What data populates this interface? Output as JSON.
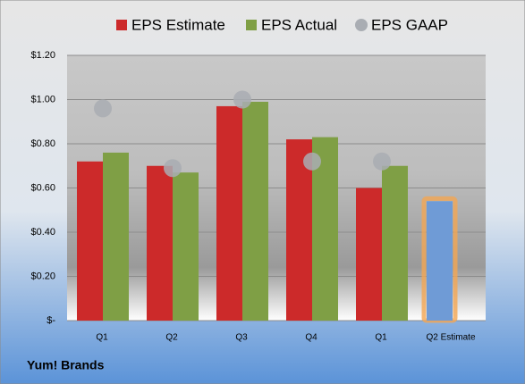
{
  "chart_data": {
    "type": "bar",
    "title": "Yum! Brands",
    "categories": [
      "Q1",
      "Q2",
      "Q3",
      "Q4",
      "Q1",
      "Q2 Estimate"
    ],
    "series": [
      {
        "name": "EPS Estimate",
        "color": "#cc2a2a",
        "colors": [
          "#cc2a2a",
          "#cc2a2a",
          "#cc2a2a",
          "#cc2a2a",
          "#cc2a2a",
          "#6f9bd6"
        ],
        "values": [
          0.72,
          0.7,
          0.97,
          0.82,
          0.6,
          0.54
        ]
      },
      {
        "name": "EPS Actual",
        "color": "#7f9f45",
        "values": [
          0.76,
          0.67,
          0.99,
          0.83,
          0.7,
          null
        ]
      },
      {
        "name": "EPS GAAP",
        "color": "#a9adb3",
        "type": "scatter",
        "values": [
          0.96,
          0.69,
          1.0,
          0.72,
          0.72,
          null
        ]
      }
    ],
    "ylim": [
      0,
      1.2
    ],
    "yticks": [
      {
        "value": 0,
        "label": "$-"
      },
      {
        "value": 0.2,
        "label": "$0.20"
      },
      {
        "value": 0.4,
        "label": "$0.40"
      },
      {
        "value": 0.6,
        "label": "$0.60"
      },
      {
        "value": 0.8,
        "label": "$0.80"
      },
      {
        "value": 1.0,
        "label": "$1.00"
      },
      {
        "value": 1.2,
        "label": "$1.20"
      }
    ],
    "grid": true
  }
}
